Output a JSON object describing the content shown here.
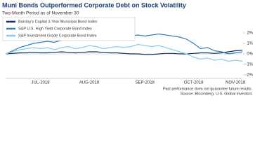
{
  "chart_data": {
    "type": "line",
    "title": "Muni Bonds Outperformed Corporate Debt on Stock Volatility",
    "subtitle": "Two-Month Period as of November 30",
    "categories": [
      null,
      null,
      null,
      null,
      null,
      "JUL-2018",
      null,
      null,
      null,
      null,
      null,
      null,
      "AUG-2018",
      null,
      null,
      null,
      null,
      null,
      null,
      null,
      "SEP-2018",
      null,
      null,
      null,
      null,
      null,
      null,
      "OCT-2018",
      null,
      null,
      null,
      null,
      null,
      "NOV-2018",
      null
    ],
    "series": [
      {
        "name": "Barclay's Capital 3-Year Municipal Bond Index",
        "color": "#0d2d5a",
        "values": [
          0,
          0.05,
          0.1,
          0.1,
          0.15,
          0.1,
          0.1,
          0.15,
          0.2,
          0.15,
          0.1,
          0.15,
          0.2,
          0.2,
          0.15,
          0.1,
          0.1,
          0.05,
          0,
          0,
          -0.05,
          -0.05,
          0,
          0.05,
          0.05,
          0,
          0,
          0.05,
          0.1,
          0.1,
          0.05,
          0.1,
          0.2,
          0.3,
          0.35
        ]
      },
      {
        "name": "S&P U.S. High Yield Corporate Bond Index",
        "color": "#2f7fc1",
        "values": [
          0,
          0.3,
          0.6,
          0.8,
          1.0,
          1.1,
          1.2,
          1.1,
          1.3,
          1.4,
          1.3,
          1.5,
          1.6,
          1.5,
          1.4,
          1.5,
          1.6,
          1.5,
          1.7,
          1.8,
          1.7,
          1.8,
          1.9,
          1.8,
          1.7,
          1.6,
          1.4,
          1.0,
          0.5,
          0.6,
          0.3,
          0.2,
          0,
          0.1,
          0.2
        ]
      },
      {
        "name": "S&P Investment Grade Corporate Bond Index",
        "color": "#8ccbe8",
        "values": [
          0,
          0.2,
          0.4,
          0.5,
          0.6,
          0.5,
          0.6,
          0.4,
          0.6,
          0.7,
          0.5,
          0.6,
          0.8,
          0.7,
          0.5,
          0.6,
          0.7,
          0.6,
          0.7,
          0.9,
          0.8,
          0.7,
          0.8,
          0.6,
          0.4,
          0.2,
          0,
          -0.3,
          -0.5,
          -0.4,
          -0.6,
          -0.5,
          -0.7,
          -0.6,
          -0.7
        ]
      }
    ],
    "ylim": [
      -2,
      2
    ],
    "yticks": [
      {
        "value": -2,
        "label": "-2%"
      },
      {
        "value": -1,
        "label": "-1%"
      },
      {
        "value": 0,
        "label": "0%"
      },
      {
        "value": 1,
        "label": "1%"
      },
      {
        "value": 2,
        "label": "2%"
      }
    ],
    "legend": "upper left",
    "notes": [
      "Past performance does not guarantee future results.",
      "Source: Bloomberg, U.S. Global Investors"
    ]
  }
}
